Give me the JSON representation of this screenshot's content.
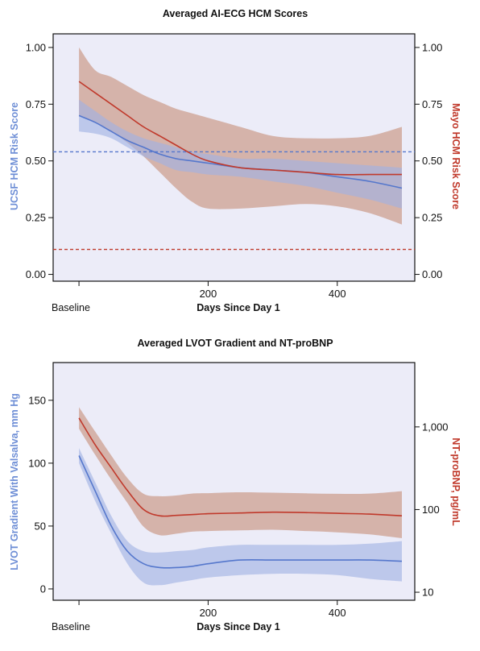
{
  "colors": {
    "plot_bg": "#ececf8",
    "ucsf": "#5577cc",
    "ucsf_band": "#9fb1e4",
    "mayo": "#c0392b",
    "mayo_band": "#cc9c8c",
    "ucsf_label": "#6f8fd6",
    "mayo_label": "#c0392b"
  },
  "chart_data": [
    {
      "type": "line",
      "title": "Averaged AI-ECG HCM Scores",
      "xlabel": "Days Since Day 1",
      "x_baseline_label": "Baseline",
      "xlim": [
        -40,
        520
      ],
      "x_ticks": [
        {
          "value": 200,
          "label": "200"
        },
        {
          "value": 400,
          "label": "400"
        }
      ],
      "ylabel_left": "UCSF HCM Risk Score",
      "ylabel_right": "Mayo HCM Risk Score",
      "ylim_left": [
        -0.03,
        1.06
      ],
      "ylim_right": [
        -0.03,
        1.06
      ],
      "left_ticks": [
        {
          "value": 0.0,
          "label": "0.00"
        },
        {
          "value": 0.25,
          "label": "0.25"
        },
        {
          "value": 0.5,
          "label": "0.50"
        },
        {
          "value": 0.75,
          "label": "0.75"
        },
        {
          "value": 1.0,
          "label": "1.00"
        }
      ],
      "right_ticks": [
        {
          "value": 0.0,
          "label": "0.00"
        },
        {
          "value": 0.25,
          "label": "0.25"
        },
        {
          "value": 0.5,
          "label": "0.50"
        },
        {
          "value": 0.75,
          "label": "0.75"
        },
        {
          "value": 1.0,
          "label": "1.00"
        }
      ],
      "grid": false,
      "series": [
        {
          "name": "UCSF HCM Risk Score",
          "axis": "left",
          "color": "#5577cc",
          "band_color": "#9fb1e4",
          "x": [
            0,
            25,
            50,
            75,
            100,
            125,
            150,
            175,
            200,
            250,
            300,
            350,
            400,
            450,
            500
          ],
          "y": [
            0.7,
            0.67,
            0.63,
            0.59,
            0.56,
            0.53,
            0.51,
            0.5,
            0.49,
            0.47,
            0.46,
            0.45,
            0.43,
            0.41,
            0.38
          ],
          "lower": [
            0.63,
            0.62,
            0.6,
            0.56,
            0.52,
            0.49,
            0.46,
            0.45,
            0.44,
            0.43,
            0.41,
            0.39,
            0.36,
            0.33,
            0.29
          ],
          "upper": [
            0.77,
            0.72,
            0.67,
            0.63,
            0.6,
            0.58,
            0.56,
            0.54,
            0.53,
            0.51,
            0.51,
            0.5,
            0.49,
            0.48,
            0.47
          ]
        },
        {
          "name": "Mayo HCM Risk Score",
          "axis": "right",
          "color": "#c0392b",
          "band_color": "#cc9c8c",
          "x": [
            0,
            25,
            50,
            75,
            100,
            125,
            150,
            175,
            200,
            250,
            300,
            350,
            400,
            450,
            500
          ],
          "y": [
            0.85,
            0.8,
            0.75,
            0.7,
            0.65,
            0.61,
            0.57,
            0.53,
            0.5,
            0.47,
            0.46,
            0.45,
            0.44,
            0.44,
            0.44
          ],
          "lower": [
            0.7,
            0.67,
            0.63,
            0.58,
            0.52,
            0.45,
            0.38,
            0.32,
            0.29,
            0.29,
            0.3,
            0.31,
            0.3,
            0.27,
            0.22
          ],
          "upper": [
            1.0,
            0.9,
            0.87,
            0.83,
            0.79,
            0.76,
            0.73,
            0.71,
            0.69,
            0.65,
            0.61,
            0.6,
            0.6,
            0.61,
            0.65
          ]
        }
      ],
      "reference_lines": [
        {
          "axis": "left",
          "value": 0.54,
          "color": "#5577cc",
          "style": "dashed"
        },
        {
          "axis": "right",
          "value": 0.11,
          "color": "#c0392b",
          "style": "dashed"
        }
      ]
    },
    {
      "type": "line",
      "title": "Averaged LVOT Gradient and NT-proBNP",
      "xlabel": "Days Since Day 1",
      "x_baseline_label": "Baseline",
      "xlim": [
        -40,
        520
      ],
      "x_ticks": [
        {
          "value": 200,
          "label": "200"
        },
        {
          "value": 400,
          "label": "400"
        }
      ],
      "ylabel_left": "LVOT Gradient With Valsalva, mm Hg",
      "ylabel_right": "NT-proBNP, pg/mL",
      "ylim_left": [
        -9,
        180
      ],
      "right_scale": "log",
      "ylim_right": [
        8,
        6000
      ],
      "left_ticks": [
        {
          "value": 0,
          "label": "0"
        },
        {
          "value": 50,
          "label": "50"
        },
        {
          "value": 100,
          "label": "100"
        },
        {
          "value": 150,
          "label": "150"
        }
      ],
      "right_ticks": [
        {
          "value": 10,
          "label": "10"
        },
        {
          "value": 100,
          "label": "100"
        },
        {
          "value": 1000,
          "label": "1,000"
        }
      ],
      "grid": false,
      "series": [
        {
          "name": "LVOT Gradient With Valsalva, mm Hg",
          "axis": "left",
          "color": "#5577cc",
          "band_color": "#9fb1e4",
          "x": [
            0,
            25,
            50,
            75,
            100,
            125,
            150,
            175,
            200,
            250,
            300,
            350,
            400,
            450,
            500
          ],
          "y": [
            106,
            78,
            50,
            30,
            20,
            17,
            17,
            18,
            20,
            23,
            23,
            23,
            23,
            23,
            22
          ],
          "lower": [
            100,
            70,
            44,
            20,
            5,
            3,
            5,
            7,
            9,
            11,
            12,
            12,
            11,
            8,
            6
          ],
          "upper": [
            112,
            85,
            58,
            38,
            30,
            29,
            30,
            31,
            33,
            35,
            35,
            35,
            35,
            36,
            38
          ]
        },
        {
          "name": "NT-proBNP, pg/mL",
          "axis": "right",
          "color": "#c0392b",
          "band_color": "#cc9c8c",
          "x": [
            0,
            25,
            50,
            75,
            100,
            125,
            150,
            175,
            200,
            250,
            300,
            350,
            400,
            450,
            500
          ],
          "y": [
            1280,
            610,
            320,
            170,
            100,
            84,
            85,
            87,
            89,
            91,
            93,
            92,
            90,
            88,
            84
          ],
          "lower": [
            950,
            460,
            230,
            120,
            62,
            49,
            51,
            54,
            55,
            56,
            57,
            55,
            53,
            50,
            45
          ],
          "upper": [
            1730,
            880,
            450,
            240,
            155,
            145,
            148,
            156,
            158,
            162,
            160,
            157,
            155,
            156,
            167
          ]
        }
      ]
    }
  ]
}
